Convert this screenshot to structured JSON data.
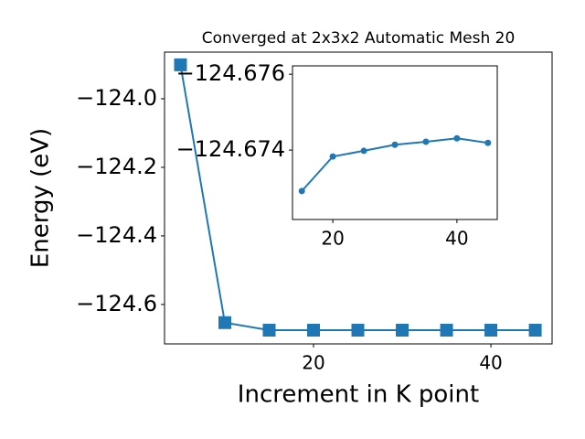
{
  "chart_data": [
    {
      "type": "line",
      "title": "Converged at 2x3x2 Automatic Mesh 20",
      "x_label": "Increment in K point",
      "y_label": "Energy (eV)",
      "x": [
        5,
        10,
        15,
        20,
        25,
        30,
        35,
        40,
        45
      ],
      "series": [
        {
          "color": "#1f77b4",
          "marker": "square",
          "values": [
            -123.901,
            -124.653,
            -124.675,
            -124.675,
            -124.675,
            -124.675,
            -124.675,
            -124.675,
            -124.675
          ]
        }
      ],
      "xlim": [
        3.2,
        46.9
      ],
      "xticks": [
        20,
        40
      ],
      "ylim": [
        -124.715,
        -123.864
      ],
      "yticks": [
        {
          "value": -124.0,
          "label": "−124.0"
        },
        {
          "value": -124.2,
          "label": "−124.2"
        },
        {
          "value": -124.4,
          "label": "−124.4"
        },
        {
          "value": -124.6,
          "label": "−124.6"
        }
      ]
    },
    {
      "type": "line",
      "inset": true,
      "x": [
        15,
        20,
        25,
        30,
        35,
        40,
        45
      ],
      "series": [
        {
          "color": "#1f77b4",
          "marker": "circle",
          "values": [
            -124.67292,
            -124.67383,
            -124.67398,
            -124.67414,
            -124.67422,
            -124.67431,
            -124.67419
          ]
        }
      ],
      "xlim": [
        13.5,
        46.5
      ],
      "xticks": [
        20,
        40
      ],
      "ylim": [
        -124.67217,
        -124.67622
      ],
      "yticks": [
        {
          "value": -124.676,
          "label": "−124.676"
        },
        {
          "value": -124.674,
          "label": "−124.674"
        }
      ]
    }
  ]
}
